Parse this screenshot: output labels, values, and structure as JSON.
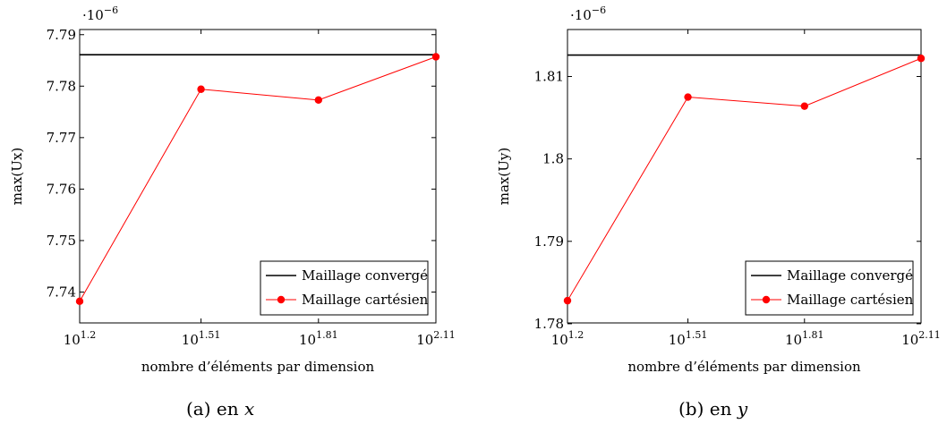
{
  "chart_data": [
    {
      "type": "line",
      "ylabel": "max(Ux)",
      "xlabel": "nombre d’éléments par dimension",
      "multiplier": "·10",
      "multiplier_exp": "−6",
      "x_scale": "log10",
      "x_ticks": [
        {
          "base": "10",
          "exp": "1.2",
          "value": 1.2
        },
        {
          "base": "10",
          "exp": "1.51",
          "value": 1.51
        },
        {
          "base": "10",
          "exp": "1.81",
          "value": 1.81
        },
        {
          "base": "10",
          "exp": "2.11",
          "value": 2.11
        }
      ],
      "xlim": [
        1.2,
        2.11
      ],
      "ylim": [
        7.734,
        7.791
      ],
      "y_ticks": [
        "7.74",
        "7.75",
        "7.76",
        "7.77",
        "7.78",
        "7.79"
      ],
      "series": [
        {
          "name": "Maillage convergé",
          "color": "#000000",
          "marker": "none",
          "y_const": 7.7861
        },
        {
          "name": "Maillage cartésien",
          "color": "#ff0000",
          "marker": "circle",
          "x": [
            1.2,
            1.51,
            1.81,
            2.11
          ],
          "y": [
            7.7382,
            7.7794,
            7.7773,
            7.7857
          ]
        }
      ],
      "legend_position": "bottom-right",
      "caption_label": "(a) en ",
      "caption_var": "x"
    },
    {
      "type": "line",
      "ylabel": "max(Uy)",
      "xlabel": "nombre d’éléments par dimension",
      "multiplier": "·10",
      "multiplier_exp": "−6",
      "x_scale": "log10",
      "x_ticks": [
        {
          "base": "10",
          "exp": "1.2",
          "value": 1.2
        },
        {
          "base": "10",
          "exp": "1.51",
          "value": 1.51
        },
        {
          "base": "10",
          "exp": "1.81",
          "value": 1.81
        },
        {
          "base": "10",
          "exp": "2.11",
          "value": 2.11
        }
      ],
      "xlim": [
        1.2,
        2.11
      ],
      "ylim": [
        1.7801,
        1.8157
      ],
      "y_ticks": [
        "1.78",
        "1.79",
        "1.8",
        "1.81"
      ],
      "series": [
        {
          "name": "Maillage convergé",
          "color": "#000000",
          "marker": "none",
          "y_const": 1.8126
        },
        {
          "name": "Maillage cartésien",
          "color": "#ff0000",
          "marker": "circle",
          "x": [
            1.2,
            1.51,
            1.81,
            2.11
          ],
          "y": [
            1.7828,
            1.8075,
            1.8064,
            1.8122
          ]
        }
      ],
      "legend_position": "bottom-right",
      "caption_label": "(b) en ",
      "caption_var": "y"
    }
  ]
}
